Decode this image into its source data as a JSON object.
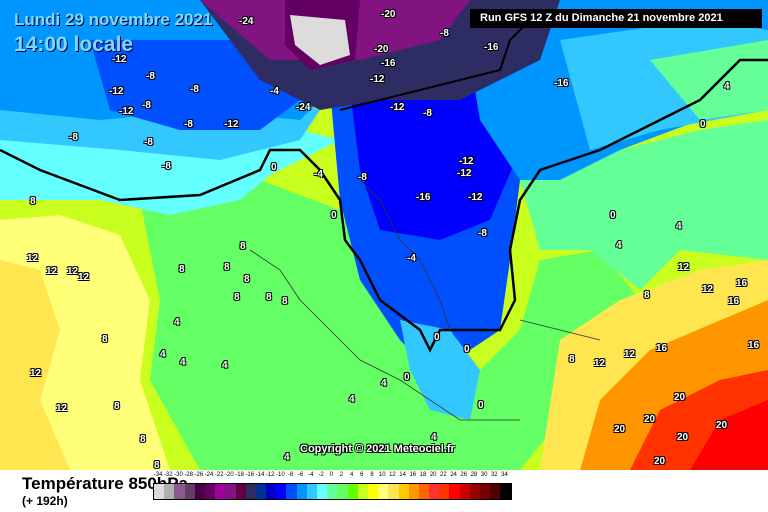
{
  "header": {
    "date": "Lundi 29 novembre 2021",
    "time": "14:00 locale",
    "run": "Run GFS 12 Z du Dimanche 21 novembre 2021"
  },
  "copyright": "Copyright © 2021 Meteociel.fr",
  "footer": {
    "variable": "Température 850hPa",
    "lead_time": "(+ 192h)"
  },
  "legend": {
    "labels": [
      "-34",
      "-32",
      "-30",
      "-28",
      "-26",
      "-24",
      "-22",
      "-20",
      "-18",
      "-16",
      "-14",
      "-12",
      "-10",
      "-8",
      "-6",
      "-4",
      "-2",
      "0",
      "2",
      "4",
      "6",
      "8",
      "10",
      "12",
      "14",
      "16",
      "18",
      "20",
      "22",
      "24",
      "26",
      "28",
      "30",
      "32",
      "34"
    ],
    "colors": [
      "#dcdcdc",
      "#b0b0b0",
      "#8c5a8c",
      "#643c64",
      "#460046",
      "#640064",
      "#a000a0",
      "#821482",
      "#640040",
      "#2d2d64",
      "#003296",
      "#0000c8",
      "#0000ff",
      "#0050ff",
      "#0096ff",
      "#32c8ff",
      "#64ffff",
      "#64ff96",
      "#64ff64",
      "#64ff00",
      "#c8ff1e",
      "#ffff00",
      "#ffff78",
      "#ffe650",
      "#ffc800",
      "#ff9600",
      "#ff6400",
      "#ff3232",
      "#ff3200",
      "#ff0000",
      "#c80000",
      "#960000",
      "#780000",
      "#500000",
      "#000000"
    ]
  },
  "contour_labels": [
    "-24",
    "-20",
    "-20",
    "-16",
    "-16",
    "-16",
    "-12",
    "-8",
    "-12",
    "-8",
    "-12",
    "-8",
    "-8",
    "-8",
    "-12",
    "-8",
    "-8",
    "-4",
    "-24",
    "-12",
    "-12",
    "-8",
    "-12",
    "-12",
    "-12",
    "-16",
    "-8",
    "-8",
    "-4",
    "0",
    "0",
    "0",
    "0",
    "4",
    "4",
    "4",
    "8",
    "12",
    "12",
    "12",
    "12",
    "8",
    "8",
    "8",
    "8",
    "8",
    "8",
    "8",
    "4",
    "8",
    "4",
    "4",
    "4",
    "12",
    "12",
    "8",
    "8",
    "8",
    "4",
    "4",
    "4",
    "4",
    "0",
    "0",
    "0",
    "0",
    "8",
    "12",
    "12",
    "16",
    "16",
    "16",
    "12",
    "12",
    "8",
    "16",
    "20",
    "20",
    "20",
    "20",
    "20",
    "20",
    "-8",
    "-4"
  ]
}
